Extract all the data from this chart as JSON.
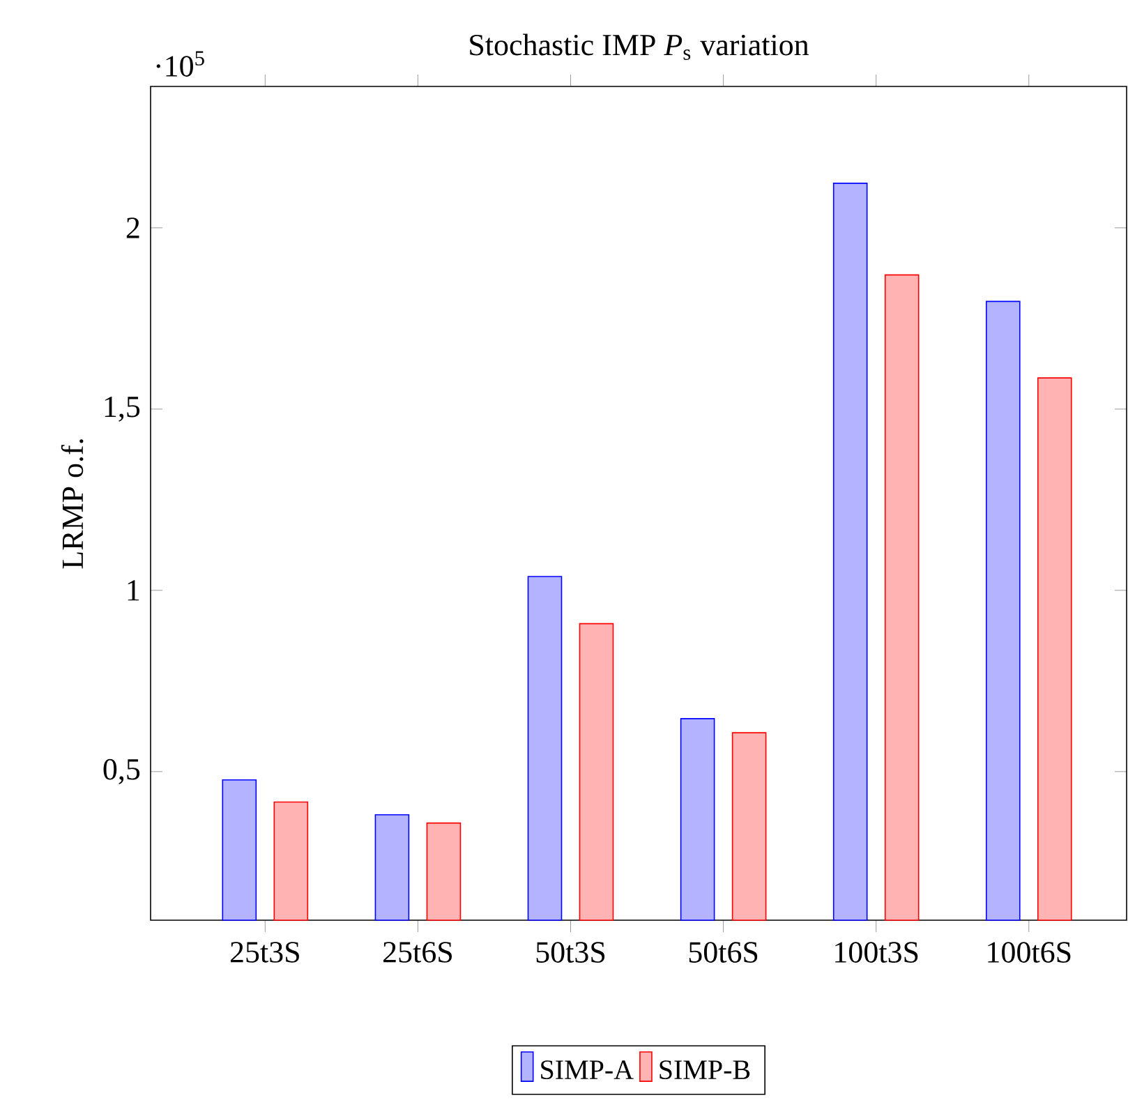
{
  "chart_data": {
    "type": "bar",
    "title": "Stochastic IMP *P*$_{s}$ variation",
    "ylabel": "LRMP o.f.",
    "annotations": [
      "·10$^{5}$"
    ],
    "categories": [
      "25t3S",
      "25t6S",
      "50t3S",
      "50t6S",
      "100t3S",
      "100t6S"
    ],
    "series": [
      {
        "name": "SIMP-A",
        "color": "#b3b3ff",
        "values": [
          0.477,
          0.381,
          1.038,
          0.646,
          2.123,
          1.797
        ]
      },
      {
        "name": "SIMP-B",
        "color": "#ffb3b3",
        "values": [
          0.416,
          0.358,
          0.908,
          0.607,
          1.87,
          1.586
        ]
      }
    ],
    "ylim": [
      0.09,
      2.39
    ],
    "yticks": [
      {
        "value": 0.5,
        "label": "0,5"
      },
      1,
      {
        "value": 1.5,
        "label": "1,5"
      },
      2
    ],
    "legend": "bottom",
    "grid": false
  }
}
